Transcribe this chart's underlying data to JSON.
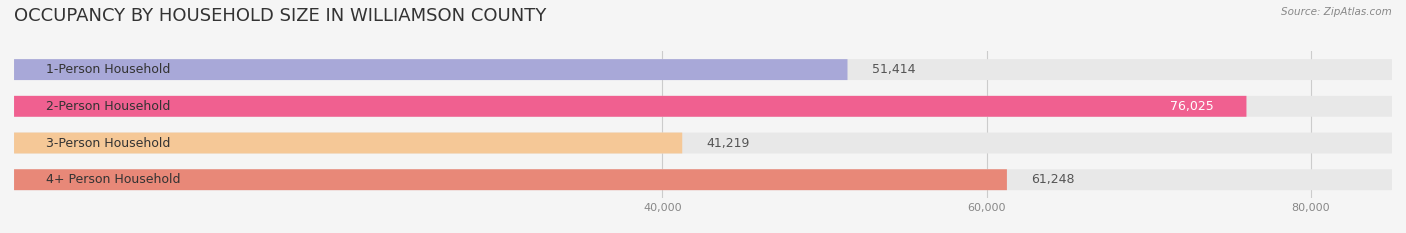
{
  "title": "OCCUPANCY BY HOUSEHOLD SIZE IN WILLIAMSON COUNTY",
  "source": "Source: ZipAtlas.com",
  "categories": [
    "1-Person Household",
    "2-Person Household",
    "3-Person Household",
    "4+ Person Household"
  ],
  "values": [
    51414,
    76025,
    41219,
    61248
  ],
  "bar_colors": [
    "#a8a8d8",
    "#f06090",
    "#f5c897",
    "#e88878"
  ],
  "bar_label_colors": [
    "#555555",
    "#ffffff",
    "#555555",
    "#555555"
  ],
  "background_color": "#f5f5f5",
  "bar_bg_color": "#e8e8e8",
  "xlim": [
    0,
    85000
  ],
  "xticks": [
    40000,
    60000,
    80000
  ],
  "xtick_labels": [
    "40,000",
    "60,000",
    "80,000"
  ],
  "title_fontsize": 13,
  "label_fontsize": 9,
  "value_fontsize": 9,
  "bar_height": 0.55,
  "fig_width": 14.06,
  "fig_height": 2.33
}
